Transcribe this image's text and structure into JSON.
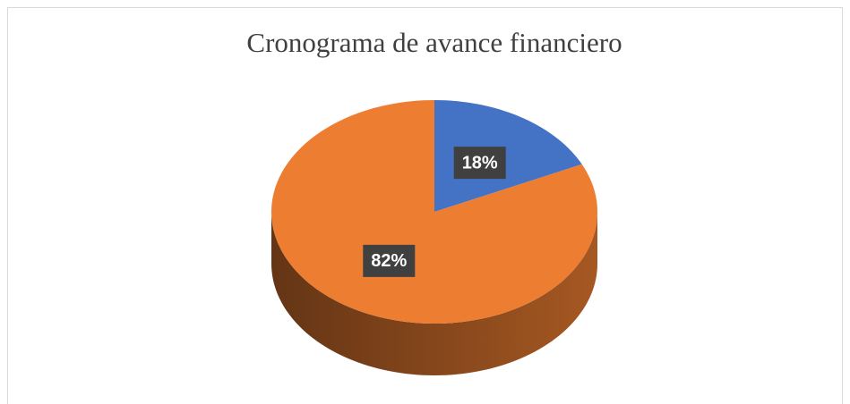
{
  "chart_data": {
    "type": "pie",
    "title": "Cronograma de avance financiero",
    "values": [
      18,
      82
    ],
    "value_labels": [
      "18%",
      "82%"
    ],
    "colors": [
      "#4472c4",
      "#ed7d31"
    ]
  }
}
